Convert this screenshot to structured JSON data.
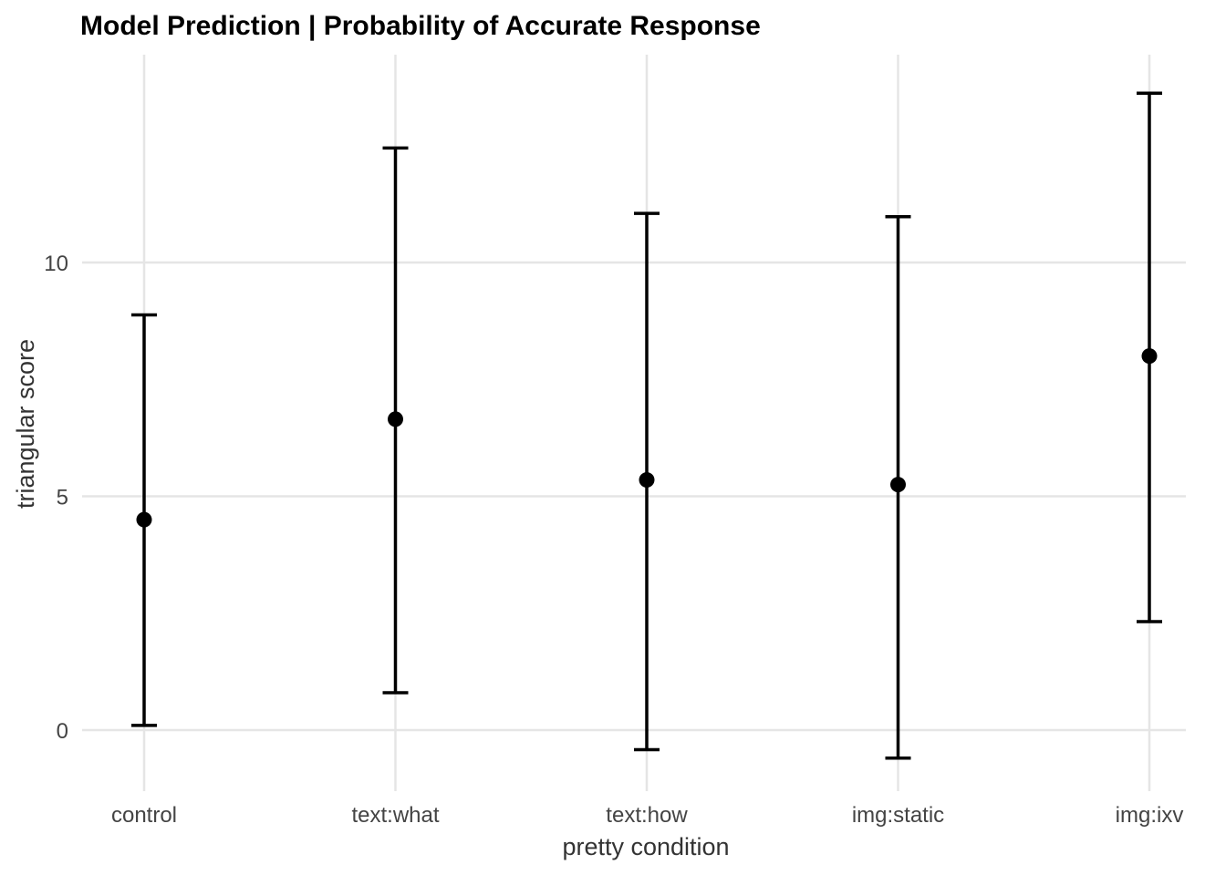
{
  "chart_data": {
    "type": "scatter",
    "title": "Model Prediction | Probability of Accurate Response",
    "xlabel": "pretty condition",
    "ylabel": "triangular score",
    "categories": [
      "control",
      "text:what",
      "text:how",
      "img:static",
      "img:ixv"
    ],
    "estimates": [
      4.5,
      6.65,
      5.35,
      5.25,
      8.0
    ],
    "lower": [
      0.1,
      0.8,
      -0.42,
      -0.6,
      2.32
    ],
    "upper": [
      8.88,
      12.45,
      11.05,
      10.98,
      13.62
    ],
    "yticks": [
      0,
      5,
      10
    ],
    "ylim": [
      -1.3,
      14.3
    ],
    "grid": true,
    "point_color": "#000000",
    "grid_color": "#e5e5e5"
  }
}
